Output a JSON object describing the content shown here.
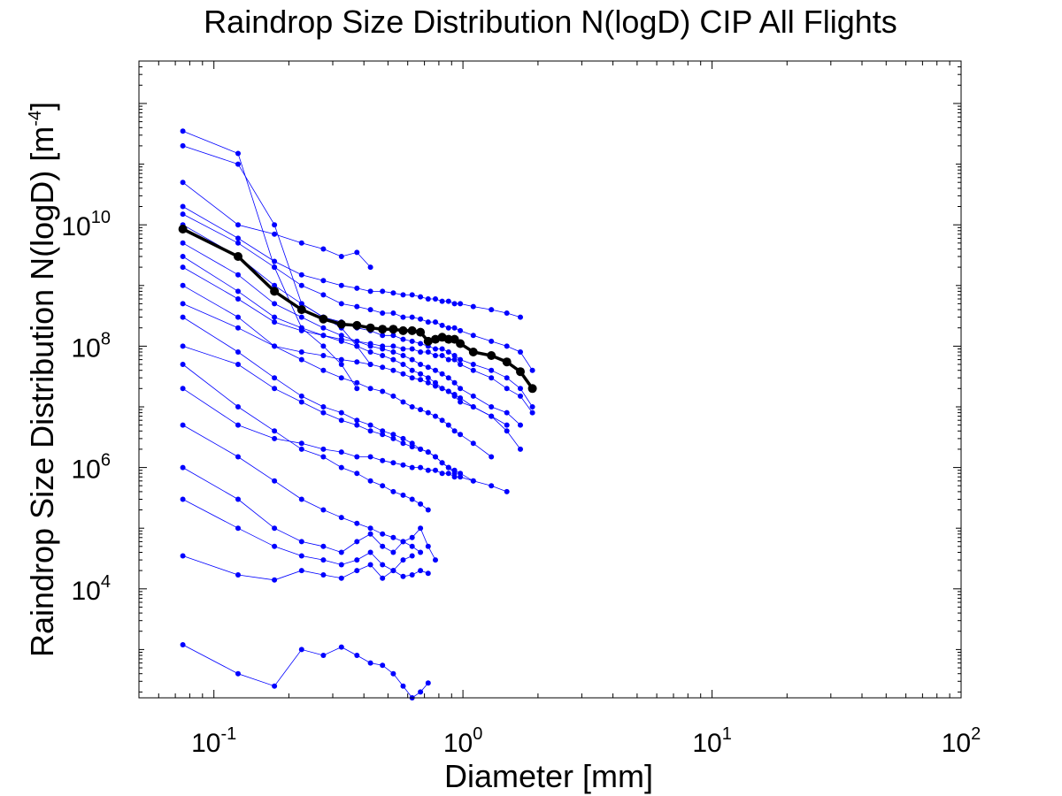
{
  "chart_data": {
    "type": "line",
    "title": "Raindrop Size Distribution N(logD) CIP All Flights",
    "xlabel": "Diameter [mm]",
    "ylabel_main": "Raindrop Size Distribution N(logD) [m",
    "ylabel_sup": "-4",
    "ylabel_tail": "]",
    "x_scale": "log",
    "y_scale": "log",
    "xlim": [
      0.05,
      100
    ],
    "ylim": [
      160,
      5000000000000
    ],
    "x_ticks": [
      {
        "value": 0.1,
        "base": "10",
        "exp": "-1"
      },
      {
        "value": 1,
        "base": "10",
        "exp": "0"
      },
      {
        "value": 10,
        "base": "10",
        "exp": "1"
      },
      {
        "value": 100,
        "base": "10",
        "exp": "2"
      }
    ],
    "y_ticks": [
      {
        "value": 10000,
        "base": "10",
        "exp": "4"
      },
      {
        "value": 1000000,
        "base": "10",
        "exp": "6"
      },
      {
        "value": 100000000,
        "base": "10",
        "exp": "8"
      },
      {
        "value": 10000000000,
        "base": "10",
        "exp": "10"
      }
    ],
    "grid": false,
    "legend": "none",
    "bins_mm": [
      0.075,
      0.125,
      0.175,
      0.225,
      0.275,
      0.325,
      0.375,
      0.425,
      0.475,
      0.525,
      0.575,
      0.625,
      0.675,
      0.725,
      0.775,
      0.825,
      0.875,
      0.925,
      0.975,
      1.1,
      1.3,
      1.5,
      1.7,
      1.9
    ],
    "mean_series": {
      "color": "#000000",
      "x": [
        0.075,
        0.125,
        0.175,
        0.225,
        0.275,
        0.325,
        0.375,
        0.425,
        0.475,
        0.525,
        0.575,
        0.625,
        0.675,
        0.725,
        0.775,
        0.825,
        0.875,
        0.925,
        0.975,
        1.1,
        1.3,
        1.5,
        1.7,
        1.9
      ],
      "y": [
        8500000000,
        3000000000,
        800000000,
        400000000,
        280000000,
        230000000,
        220000000,
        200000000,
        190000000,
        190000000,
        180000000,
        180000000,
        170000000,
        120000000,
        130000000,
        140000000,
        130000000,
        130000000,
        110000000,
        80000000,
        70000000,
        55000000,
        38000000,
        20000000
      ]
    },
    "flights_series": {
      "color": "#0000ff",
      "count": "many",
      "series": [
        {
          "x": [
            0.075,
            0.125,
            0.175,
            0.225,
            0.275,
            0.325,
            0.375
          ],
          "y": [
            350000000000,
            150000000000,
            2000000000,
            200000000,
            100000000,
            50000000,
            20000000
          ]
        },
        {
          "x": [
            0.075,
            0.125,
            0.175,
            0.225,
            0.275,
            0.325,
            0.375,
            0.425
          ],
          "y": [
            200000000000,
            100000000000,
            10000000000,
            500000000,
            300000000,
            200000000,
            100000000,
            50000000
          ]
        },
        {
          "x": [
            0.075,
            0.125,
            0.175,
            0.225,
            0.275,
            0.325,
            0.375,
            0.425
          ],
          "y": [
            50000000000,
            10000000000,
            7000000000,
            5000000000,
            4000000000,
            3000000000,
            3500000000,
            2000000000
          ]
        },
        {
          "x": [
            0.075,
            0.125,
            0.175,
            0.225,
            0.275,
            0.325,
            0.375,
            0.425,
            0.475,
            0.525,
            0.575,
            0.625,
            0.675,
            0.725,
            0.775,
            0.825,
            0.875,
            0.925,
            0.975,
            1.1,
            1.3,
            1.5,
            1.7
          ],
          "y": [
            20000000000,
            6000000000,
            2500000000,
            1500000000,
            1200000000,
            1000000000,
            900000000,
            800000000,
            800000000,
            750000000,
            700000000,
            700000000,
            650000000,
            600000000,
            600000000,
            550000000,
            550000000,
            500000000,
            500000000,
            450000000,
            400000000,
            350000000,
            300000000
          ]
        },
        {
          "x": [
            0.075,
            0.125,
            0.175,
            0.225,
            0.275,
            0.325,
            0.375,
            0.425,
            0.475,
            0.525,
            0.575,
            0.625,
            0.675,
            0.725,
            0.775,
            0.825,
            0.875,
            0.925,
            0.975,
            1.1,
            1.3,
            1.5,
            1.7,
            1.9
          ],
          "y": [
            15000000000,
            5000000000,
            2000000000,
            1000000000,
            700000000,
            500000000,
            450000000,
            400000000,
            350000000,
            350000000,
            300000000,
            300000000,
            280000000,
            250000000,
            250000000,
            220000000,
            200000000,
            200000000,
            180000000,
            150000000,
            120000000,
            100000000,
            80000000,
            40000000
          ]
        },
        {
          "x": [
            0.075,
            0.125,
            0.175,
            0.225,
            0.275,
            0.325,
            0.375,
            0.425,
            0.475,
            0.525,
            0.575,
            0.625,
            0.675,
            0.725,
            0.775,
            0.825,
            0.875,
            0.925,
            0.975,
            1.1,
            1.3,
            1.5,
            1.7,
            1.9
          ],
          "y": [
            10000000000,
            3000000000,
            1000000000,
            500000000,
            300000000,
            250000000,
            200000000,
            180000000,
            150000000,
            150000000,
            130000000,
            120000000,
            110000000,
            100000000,
            90000000,
            90000000,
            80000000,
            70000000,
            60000000,
            50000000,
            40000000,
            30000000,
            20000000,
            10000000
          ]
        },
        {
          "x": [
            0.075,
            0.125,
            0.175,
            0.225,
            0.275,
            0.325,
            0.375,
            0.425,
            0.475,
            0.525,
            0.575,
            0.625,
            0.675,
            0.725,
            0.775,
            0.825,
            0.875,
            0.925,
            0.975,
            1.1,
            1.3,
            1.5,
            1.7
          ],
          "y": [
            5000000000,
            1500000000,
            500000000,
            300000000,
            200000000,
            150000000,
            120000000,
            100000000,
            90000000,
            80000000,
            70000000,
            60000000,
            50000000,
            45000000,
            40000000,
            35000000,
            30000000,
            25000000,
            20000000,
            15000000,
            10000000,
            8000000,
            5000000
          ]
        },
        {
          "x": [
            0.075,
            0.125,
            0.175,
            0.225,
            0.275,
            0.325,
            0.375,
            0.425,
            0.475,
            0.525,
            0.575,
            0.625,
            0.675,
            0.725,
            0.775,
            0.825,
            0.875,
            0.925,
            0.975,
            1.1,
            1.3,
            1.5
          ],
          "y": [
            3000000000,
            800000000,
            300000000,
            200000000,
            150000000,
            120000000,
            100000000,
            80000000,
            70000000,
            60000000,
            50000000,
            40000000,
            35000000,
            30000000,
            25000000,
            20000000,
            18000000,
            15000000,
            12000000,
            10000000,
            7000000,
            5000000
          ]
        },
        {
          "x": [
            0.075,
            0.125,
            0.175,
            0.225,
            0.275,
            0.325,
            0.375,
            0.425,
            0.475,
            0.525,
            0.575,
            0.625,
            0.675,
            0.725,
            0.775,
            0.825,
            0.875,
            0.925,
            0.975,
            1.1,
            1.3,
            1.5,
            1.7,
            1.9
          ],
          "y": [
            2000000000,
            600000000,
            250000000,
            180000000,
            150000000,
            130000000,
            120000000,
            110000000,
            100000000,
            100000000,
            90000000,
            90000000,
            80000000,
            80000000,
            70000000,
            70000000,
            60000000,
            60000000,
            50000000,
            40000000,
            30000000,
            20000000,
            15000000,
            8000000
          ]
        },
        {
          "x": [
            0.075,
            0.125,
            0.175,
            0.225,
            0.275,
            0.325,
            0.375,
            0.425,
            0.475,
            0.525,
            0.575,
            0.625,
            0.675,
            0.725,
            0.775,
            0.825,
            0.875,
            0.925,
            0.975,
            1.1,
            1.3
          ],
          "y": [
            1000000000,
            300000000,
            100000000,
            60000000,
            40000000,
            30000000,
            25000000,
            20000000,
            18000000,
            15000000,
            12000000,
            10000000,
            9000000,
            8000000,
            7000000,
            6000000,
            5000000,
            4000000,
            3500000,
            2500000,
            1500000
          ]
        },
        {
          "x": [
            0.075,
            0.125,
            0.175,
            0.225,
            0.275,
            0.325,
            0.375,
            0.425,
            0.475,
            0.525,
            0.575,
            0.625,
            0.675,
            0.725,
            0.775,
            0.825,
            0.875,
            0.925,
            0.975,
            1.1,
            1.3,
            1.5,
            1.7
          ],
          "y": [
            500000000,
            200000000,
            100000000,
            80000000,
            70000000,
            60000000,
            55000000,
            50000000,
            45000000,
            40000000,
            35000000,
            30000000,
            28000000,
            25000000,
            22000000,
            20000000,
            18000000,
            16000000,
            14000000,
            10000000,
            7000000,
            4000000,
            2000000
          ]
        },
        {
          "x": [
            0.075,
            0.125,
            0.175,
            0.225,
            0.275,
            0.325,
            0.375,
            0.425,
            0.475,
            0.525,
            0.575,
            0.625,
            0.675,
            0.725,
            0.775,
            0.825,
            0.875,
            0.925
          ],
          "y": [
            300000000,
            80000000,
            30000000,
            15000000,
            10000000,
            8000000,
            6000000,
            5000000,
            4000000,
            3500000,
            3000000,
            2500000,
            2000000,
            1800000,
            1500000,
            1200000,
            1000000,
            800000
          ]
        },
        {
          "x": [
            0.075,
            0.125,
            0.175,
            0.225,
            0.275,
            0.325,
            0.375,
            0.425,
            0.475,
            0.525,
            0.575,
            0.625,
            0.675,
            0.725,
            0.775,
            0.825,
            0.875,
            0.925,
            0.975,
            1.1
          ],
          "y": [
            100000000,
            50000000,
            20000000,
            12000000,
            8000000,
            6000000,
            5000000,
            4000000,
            3500000,
            3000000,
            2500000,
            2200000,
            2000000,
            1800000,
            1500000,
            1200000,
            1000000,
            900000,
            800000,
            600000
          ]
        },
        {
          "x": [
            0.075,
            0.125,
            0.175,
            0.225,
            0.275,
            0.325,
            0.375,
            0.425,
            0.475,
            0.525,
            0.575,
            0.625,
            0.675,
            0.725
          ],
          "y": [
            50000000,
            10000000,
            4000000,
            2000000,
            1500000,
            1000000,
            800000,
            600000,
            500000,
            400000,
            350000,
            300000,
            250000,
            200000
          ]
        },
        {
          "x": [
            0.075,
            0.125,
            0.175,
            0.225,
            0.275,
            0.325,
            0.375,
            0.425,
            0.475,
            0.525,
            0.575,
            0.625,
            0.675,
            0.725,
            0.775,
            0.825,
            0.875,
            0.925,
            0.975,
            1.1,
            1.3,
            1.5
          ],
          "y": [
            20000000,
            5000000,
            3000000,
            2500000,
            2000000,
            1800000,
            1500000,
            1500000,
            1300000,
            1200000,
            1100000,
            1000000,
            1000000,
            900000,
            900000,
            800000,
            800000,
            700000,
            700000,
            600000,
            500000,
            400000
          ]
        },
        {
          "x": [
            0.075,
            0.125,
            0.175,
            0.225,
            0.275,
            0.325,
            0.375,
            0.425,
            0.475,
            0.525,
            0.575,
            0.625,
            0.675
          ],
          "y": [
            5000000,
            1500000,
            600000,
            300000,
            200000,
            150000,
            120000,
            100000,
            80000,
            70000,
            60000,
            50000,
            40000
          ]
        },
        {
          "x": [
            0.075,
            0.125,
            0.175,
            0.225,
            0.275,
            0.325,
            0.375,
            0.425,
            0.475,
            0.525,
            0.575,
            0.625,
            0.675,
            0.725,
            0.775
          ],
          "y": [
            1000000,
            300000,
            100000,
            60000,
            50000,
            40000,
            60000,
            80000,
            50000,
            40000,
            60000,
            70000,
            100000,
            50000,
            30000
          ]
        },
        {
          "x": [
            0.075,
            0.125,
            0.175,
            0.225,
            0.275,
            0.325,
            0.375,
            0.425,
            0.475,
            0.525,
            0.575,
            0.625
          ],
          "y": [
            300000,
            100000,
            50000,
            35000,
            30000,
            25000,
            30000,
            40000,
            25000,
            20000,
            30000,
            35000
          ]
        },
        {
          "x": [
            0.075,
            0.125,
            0.175,
            0.225,
            0.275,
            0.325,
            0.375,
            0.425,
            0.475,
            0.525,
            0.575,
            0.625,
            0.675,
            0.725
          ],
          "y": [
            35000,
            17000,
            14000,
            20000,
            17000,
            15000,
            20000,
            25000,
            15000,
            20000,
            16000,
            17000,
            20000,
            18000
          ]
        },
        {
          "x": [
            0.075,
            0.125,
            0.175,
            0.225,
            0.275,
            0.325,
            0.375,
            0.425,
            0.475,
            0.525,
            0.575,
            0.625,
            0.675,
            0.725
          ],
          "y": [
            1200,
            400,
            250,
            1000,
            800,
            1100,
            800,
            600,
            550,
            400,
            250,
            160,
            200,
            280
          ]
        }
      ]
    }
  }
}
